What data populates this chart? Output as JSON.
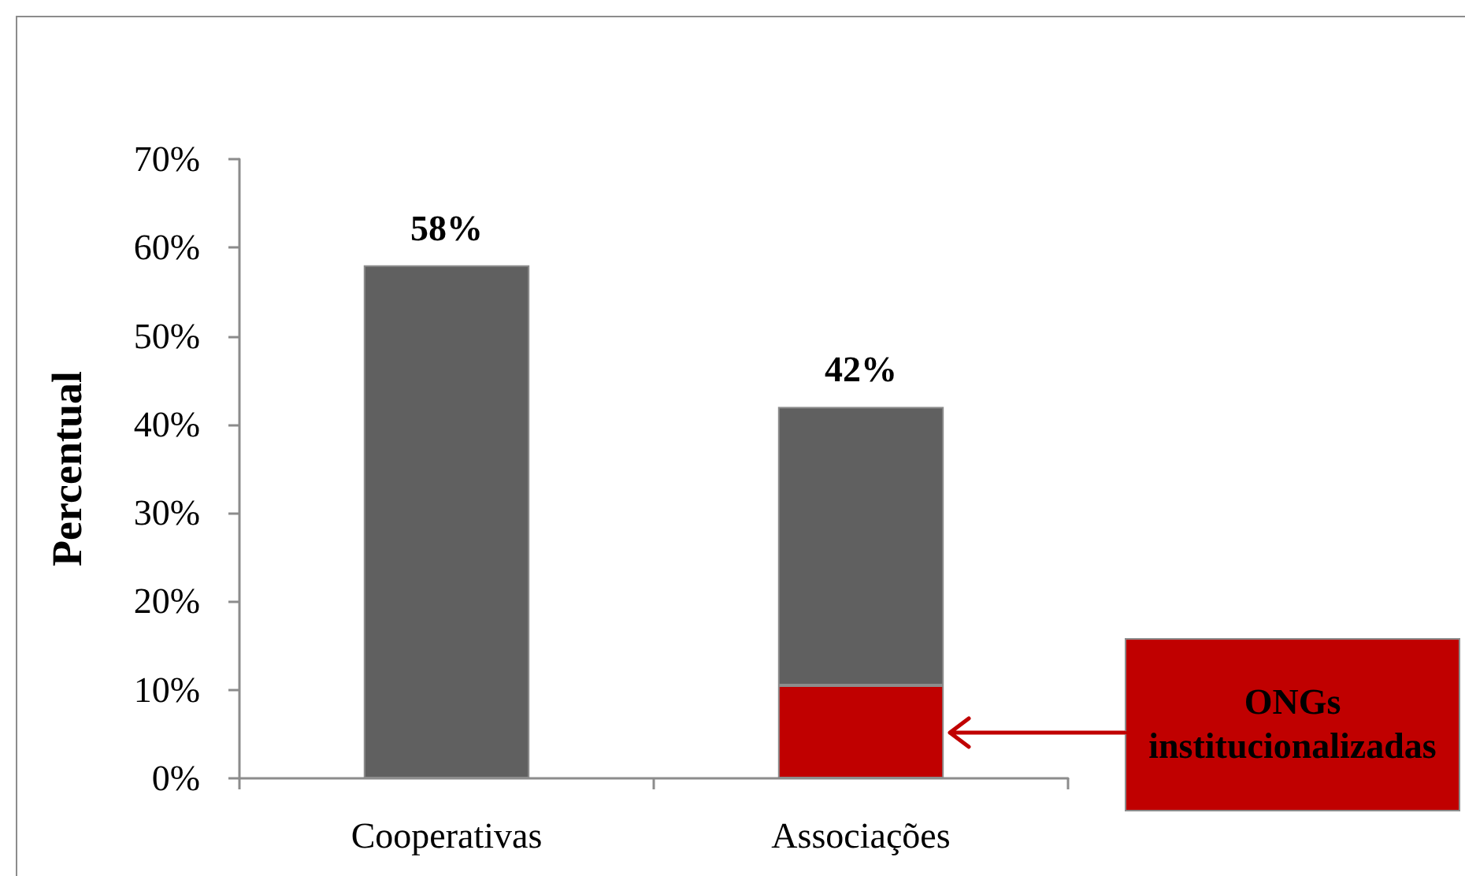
{
  "chart_data": {
    "type": "bar",
    "stacked": true,
    "categories": [
      "Cooperativas",
      "Associações"
    ],
    "series": [
      {
        "color": "#c00000",
        "values": [
          null,
          10.5
        ]
      },
      {
        "color": "#606060",
        "values": [
          58,
          31.5
        ]
      }
    ],
    "totals": [
      "58%",
      "42%"
    ],
    "ylabel": "Percentual",
    "ylim": [
      0,
      70
    ],
    "yticks": [
      {
        "value": 0,
        "label": "0%"
      },
      {
        "value": 10,
        "label": "10%"
      },
      {
        "value": 20,
        "label": "20%"
      },
      {
        "value": 30,
        "label": "30%"
      },
      {
        "value": 40,
        "label": "40%"
      },
      {
        "value": 50,
        "label": "50%"
      },
      {
        "value": 60,
        "label": "60%"
      },
      {
        "value": 70,
        "label": "70%"
      }
    ],
    "annotations": [
      "ONGs institucionalizadas"
    ]
  }
}
